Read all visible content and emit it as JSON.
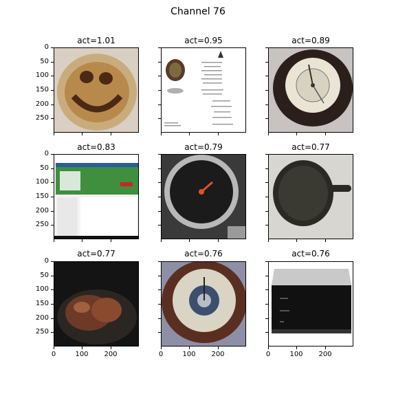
{
  "figure": {
    "title": "Channel 76"
  },
  "panels": [
    {
      "label": "act=1.01",
      "image": "smiley-face-coffee-plate"
    },
    {
      "label": "act=0.95",
      "image": "document-page-with-portrait"
    },
    {
      "label": "act=0.89",
      "image": "barometer-dial"
    },
    {
      "label": "act=0.83",
      "image": "software-website-screenshot"
    },
    {
      "label": "act=0.79",
      "image": "car-speedometer-gauge"
    },
    {
      "label": "act=0.77",
      "image": "cast-iron-skillet"
    },
    {
      "label": "act=0.77",
      "image": "roast-meat-in-pot"
    },
    {
      "label": "act=0.76",
      "image": "variable-barometer-dial"
    },
    {
      "label": "act=0.76",
      "image": "black-silver-audio-device"
    }
  ],
  "axes": {
    "y_ticks": [
      "0",
      "50",
      "100",
      "150",
      "200",
      "250"
    ],
    "x_ticks": [
      "0",
      "100",
      "200"
    ]
  }
}
